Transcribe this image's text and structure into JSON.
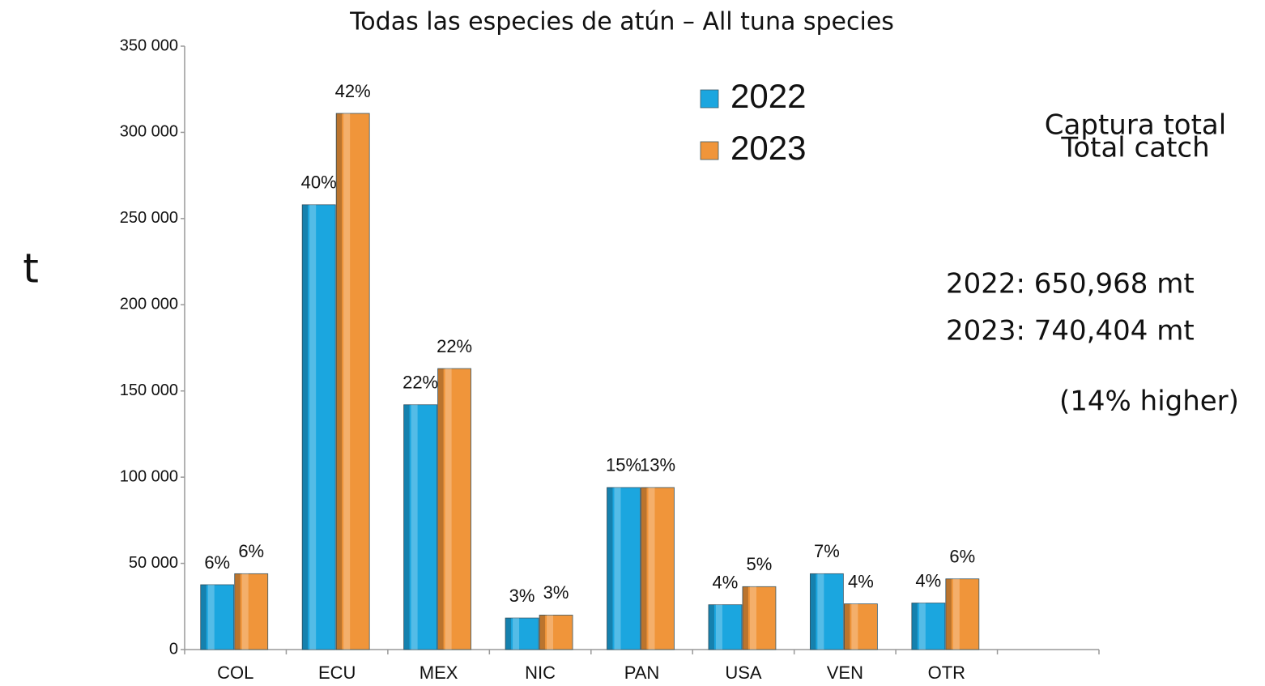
{
  "chart_data": {
    "type": "bar",
    "title": "Todas las especies de atún – All tuna species",
    "y_label": "t",
    "categories": [
      "COL",
      "ECU",
      "MEX",
      "NIC",
      "PAN",
      "USA",
      "VEN",
      "OTR",
      null
    ],
    "series": [
      {
        "name": "2022",
        "color": "#1ba6df",
        "values": [
          37600,
          258000,
          142000,
          18300,
          94000,
          26000,
          44000,
          27000,
          null
        ],
        "percent_labels": [
          "6%",
          "40%",
          "22%",
          "3%",
          "15%",
          "4%",
          "7%",
          "4%",
          null
        ]
      },
      {
        "name": "2023",
        "color": "#f0953a",
        "values": [
          44000,
          311000,
          163000,
          20000,
          94000,
          36500,
          26500,
          41000,
          null
        ],
        "percent_labels": [
          "6%",
          "42%",
          "22%",
          "3%",
          "13%",
          "5%",
          "4%",
          "6%",
          null
        ]
      }
    ],
    "ylim": [
      0,
      350000
    ],
    "yticks": [
      0,
      {
        "value": 50000,
        "label": "50 000"
      },
      {
        "value": 100000,
        "label": "100 000"
      },
      {
        "value": 150000,
        "label": "150 000"
      },
      {
        "value": 200000,
        "label": "200 000"
      },
      {
        "value": 250000,
        "label": "250 000"
      },
      {
        "value": 300000,
        "label": "300 000"
      },
      {
        "value": 350000,
        "label": "350 000"
      }
    ],
    "grid": false,
    "legend": "top-right",
    "annotations": [
      "Captura total",
      "Total catch",
      "2022:  650,968 mt",
      "2023:  740,404 mt",
      "(14% higher)"
    ]
  }
}
